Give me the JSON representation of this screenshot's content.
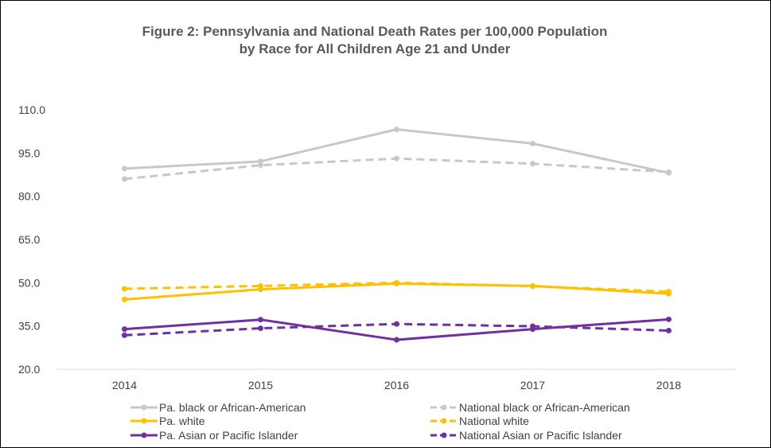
{
  "chart_data": {
    "type": "line",
    "title": "Figure 2:  Pennsylvania and National Death Rates per 100,000 Population",
    "subtitle": "by Race for All Children Age 21 and Under",
    "xlabel": "",
    "ylabel": "",
    "x": [
      "2014",
      "2015",
      "2016",
      "2017",
      "2018"
    ],
    "ylim": [
      20.0,
      110.0
    ],
    "yticks": [
      "20.0",
      "35.0",
      "50.0",
      "65.0",
      "80.0",
      "95.0",
      "110.0"
    ],
    "grid": false,
    "legend_position": "bottom",
    "series": [
      {
        "name": "Pa. black or African-American",
        "values": [
          89.6,
          92.1,
          103.2,
          98.3,
          88.1
        ],
        "color": "#c8c8c8",
        "dash": false
      },
      {
        "name": "National black or African-American",
        "values": [
          86.0,
          90.8,
          93.1,
          91.3,
          88.4
        ],
        "color": "#c8c8c8",
        "dash": true
      },
      {
        "name": "Pa. white",
        "values": [
          44.2,
          47.7,
          49.7,
          48.9,
          46.2
        ],
        "color": "#ffc000",
        "dash": false
      },
      {
        "name": "National white",
        "values": [
          47.9,
          48.9,
          50.0,
          48.8,
          46.9
        ],
        "color": "#ffc000",
        "dash": true
      },
      {
        "name": "Pa. Asian or Pacific Islander",
        "values": [
          33.9,
          37.2,
          30.2,
          33.9,
          37.3
        ],
        "color": "#7030a0",
        "dash": false
      },
      {
        "name": "National Asian or Pacific Islander",
        "values": [
          31.8,
          34.2,
          35.7,
          34.9,
          33.4
        ],
        "color": "#7030a0",
        "dash": true
      }
    ]
  }
}
